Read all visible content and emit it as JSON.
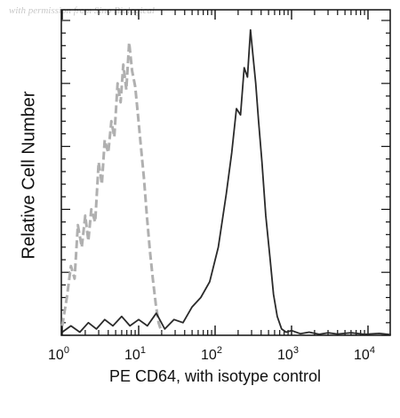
{
  "watermark": "with permission from Sino Biological",
  "chart_data": {
    "type": "area",
    "title": "",
    "xlabel": "PE CD64, with isotype control",
    "ylabel": "Relative Cell Number",
    "xscale": "log",
    "xlim": [
      1,
      20000
    ],
    "ylim": [
      0,
      100
    ],
    "grid": false,
    "x_ticks": [
      {
        "base": "10",
        "exp": "0",
        "value": 1
      },
      {
        "base": "10",
        "exp": "1",
        "value": 10
      },
      {
        "base": "10",
        "exp": "2",
        "value": 100
      },
      {
        "base": "10",
        "exp": "3",
        "value": 1000
      },
      {
        "base": "10",
        "exp": "4",
        "value": 10000
      }
    ],
    "y_ticks_labeled": false,
    "series": [
      {
        "role": "isotype control",
        "style": "dashed",
        "color": "#b0b0b0",
        "points": [
          [
            1.0,
            3
          ],
          [
            1.15,
            12
          ],
          [
            1.3,
            22
          ],
          [
            1.45,
            18
          ],
          [
            1.6,
            35
          ],
          [
            1.8,
            28
          ],
          [
            2.0,
            38
          ],
          [
            2.2,
            30
          ],
          [
            2.4,
            40
          ],
          [
            2.7,
            36
          ],
          [
            3.0,
            55
          ],
          [
            3.3,
            48
          ],
          [
            3.6,
            62
          ],
          [
            4.0,
            58
          ],
          [
            4.4,
            68
          ],
          [
            4.8,
            63
          ],
          [
            5.3,
            80
          ],
          [
            5.8,
            74
          ],
          [
            6.3,
            86
          ],
          [
            6.9,
            78
          ],
          [
            7.5,
            93
          ],
          [
            8.2,
            84
          ],
          [
            9.0,
            79
          ],
          [
            9.8,
            70
          ],
          [
            10.7,
            60
          ],
          [
            11.7,
            50
          ],
          [
            12.8,
            38
          ],
          [
            14.0,
            27
          ],
          [
            15.3,
            18
          ],
          [
            16.7,
            10
          ],
          [
            18.2,
            4
          ],
          [
            20.0,
            1
          ]
        ]
      },
      {
        "role": "PE CD64",
        "style": "solid",
        "color": "#2a2a2a",
        "points": [
          [
            1.0,
            1
          ],
          [
            1.3,
            3
          ],
          [
            1.7,
            1
          ],
          [
            2.2,
            4
          ],
          [
            2.8,
            2
          ],
          [
            3.6,
            5
          ],
          [
            4.6,
            3
          ],
          [
            6.0,
            6
          ],
          [
            7.7,
            3
          ],
          [
            10.0,
            5
          ],
          [
            13.0,
            3
          ],
          [
            17.0,
            7
          ],
          [
            22.0,
            2
          ],
          [
            29.0,
            5
          ],
          [
            38.0,
            4
          ],
          [
            50.0,
            9
          ],
          [
            65.0,
            12
          ],
          [
            85.0,
            17
          ],
          [
            110.0,
            28
          ],
          [
            140.0,
            45
          ],
          [
            165.0,
            58
          ],
          [
            190.0,
            72
          ],
          [
            215.0,
            70
          ],
          [
            240.0,
            85
          ],
          [
            265.0,
            82
          ],
          [
            290.0,
            97
          ],
          [
            315.0,
            88
          ],
          [
            340.0,
            80
          ],
          [
            370.0,
            68
          ],
          [
            410.0,
            55
          ],
          [
            460.0,
            38
          ],
          [
            520.0,
            25
          ],
          [
            580.0,
            13
          ],
          [
            650.0,
            6
          ],
          [
            740.0,
            2
          ],
          [
            850.0,
            1
          ],
          [
            1000.0,
            1.5
          ],
          [
            1300.0,
            0.5
          ],
          [
            1700.0,
            1
          ],
          [
            2300.0,
            0.3
          ],
          [
            3000.0,
            0.8
          ],
          [
            4000.0,
            0.4
          ],
          [
            6000.0,
            0.8
          ],
          [
            9000.0,
            0.3
          ],
          [
            14000.0,
            0.6
          ],
          [
            20000.0,
            0.2
          ]
        ]
      }
    ]
  }
}
